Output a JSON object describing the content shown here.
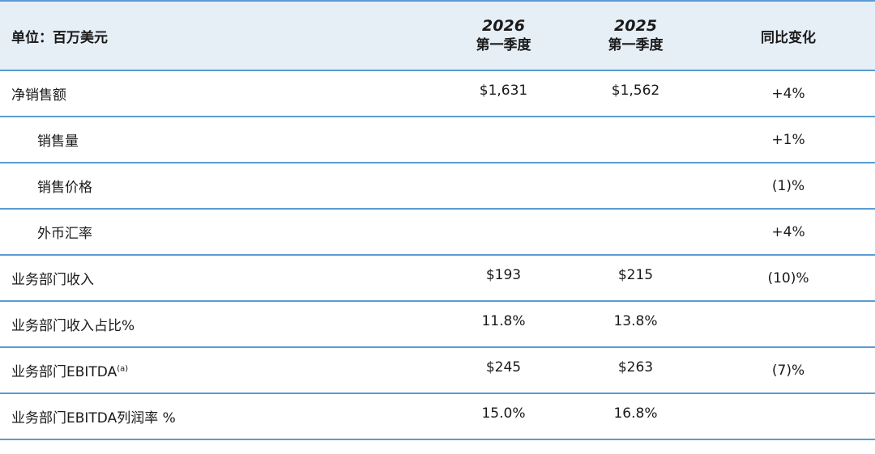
{
  "header": {
    "label": "单位：百万美元",
    "col_2026_year": "2026",
    "col_2026_quarter": "第一季度",
    "col_2025_year": "2025",
    "col_2025_quarter": "第一季度",
    "col_yoy": "同比变化"
  },
  "rows": [
    {
      "label": "净销售额",
      "v2026": "$1,631",
      "v2025": "$1,562",
      "yoy": "+4%"
    },
    {
      "label": "销售量",
      "v2026": "",
      "v2025": "",
      "yoy": "+1%"
    },
    {
      "label": "销售价格",
      "v2026": "",
      "v2025": "",
      "yoy": "(1)%"
    },
    {
      "label": "外币汇率",
      "v2026": "",
      "v2025": "",
      "yoy": "+4%"
    },
    {
      "label": "业务部门收入",
      "v2026": "$193",
      "v2025": "$215",
      "yoy": "(10)%"
    },
    {
      "label": "业务部门收入占比%",
      "v2026": "11.8%",
      "v2025": "13.8%",
      "yoy": ""
    },
    {
      "label": "业务部门EBITDA",
      "label_sup": "(a)",
      "v2026": "$245",
      "v2025": "$263",
      "yoy": "(7)%"
    },
    {
      "label": "业务部门EBITDA列润率 %",
      "v2026": "15.0%",
      "v2025": "16.8%",
      "yoy": ""
    }
  ],
  "colors": {
    "header_bg": "#e6eef6",
    "rule": "#5b9bd5",
    "text": "#1a1a1a"
  }
}
